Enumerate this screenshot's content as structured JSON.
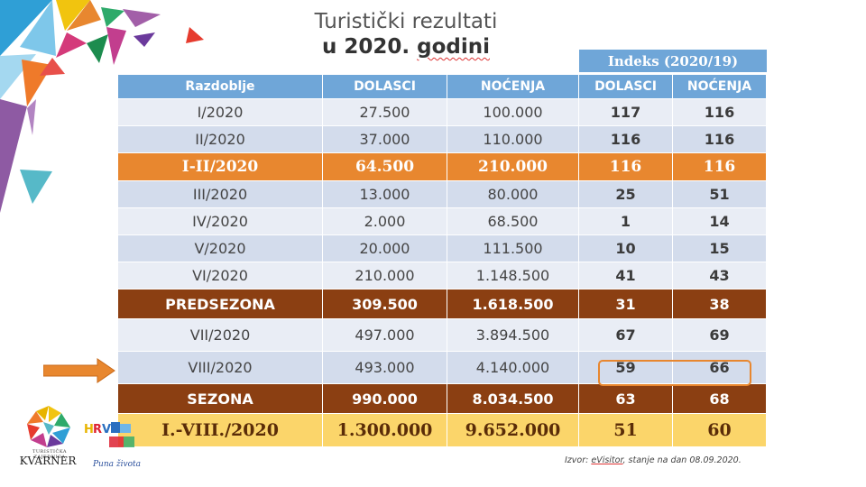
{
  "title": {
    "line1": "Turistički rezultati",
    "line2_prefix": "u 2020. ",
    "line2_word": "godini"
  },
  "index_header": "Indeks (2020/19)",
  "columns": [
    "Razdoblje",
    "DOLASCI",
    "NOĆENJA",
    "DOLASCI",
    "NOĆENJA"
  ],
  "rows": [
    {
      "period": "I/2020",
      "arrivals": "27.500",
      "nights": "100.000",
      "idx_arrivals": "117",
      "idx_nights": "116",
      "style": "alt1"
    },
    {
      "period": "II/2020",
      "arrivals": "37.000",
      "nights": "110.000",
      "idx_arrivals": "116",
      "idx_nights": "116",
      "style": "alt2"
    },
    {
      "period": "I-II/2020",
      "arrivals": "64.500",
      "nights": "210.000",
      "idx_arrivals": "116",
      "idx_nights": "116",
      "style": "orange"
    },
    {
      "period": "III/2020",
      "arrivals": "13.000",
      "nights": "80.000",
      "idx_arrivals": "25",
      "idx_nights": "51",
      "style": "alt2"
    },
    {
      "period": "IV/2020",
      "arrivals": "2.000",
      "nights": "68.500",
      "idx_arrivals": "1",
      "idx_nights": "14",
      "style": "alt1"
    },
    {
      "period": "V/2020",
      "arrivals": "20.000",
      "nights": "111.500",
      "idx_arrivals": "10",
      "idx_nights": "15",
      "style": "alt2"
    },
    {
      "period": "VI/2020",
      "arrivals": "210.000",
      "nights": "1.148.500",
      "idx_arrivals": "41",
      "idx_nights": "43",
      "style": "alt1"
    },
    {
      "period": "PREDSEZONA",
      "arrivals": "309.500",
      "nights": "1.618.500",
      "idx_arrivals": "31",
      "idx_nights": "38",
      "style": "brown"
    },
    {
      "period": "VII/2020",
      "arrivals": "497.000",
      "nights": "3.894.500",
      "idx_arrivals": "67",
      "idx_nights": "69",
      "style": "alt1"
    },
    {
      "period": "VIII/2020",
      "arrivals": "493.000",
      "nights": "4.140.000",
      "idx_arrivals": "59",
      "idx_nights": "66",
      "style": "alt2"
    },
    {
      "period": "SEZONA",
      "arrivals": "990.000",
      "nights": "8.034.500",
      "idx_arrivals": "63",
      "idx_nights": "68",
      "style": "brown"
    },
    {
      "period": "I.-VIII./2020",
      "arrivals": "1.300.000",
      "nights": "9.652.000",
      "idx_arrivals": "51",
      "idx_nights": "60",
      "style": "yellow"
    }
  ],
  "source": {
    "prefix": "Izvor: ",
    "name": "eVisitor",
    "suffix": ", stanje na dan 08.09.2020."
  },
  "logos": {
    "kvarner_small": "TURISTIČKA ZAJEDNICA",
    "kvarner_big": "KVARNER",
    "hrvatska_tagline": "Puna života"
  },
  "colors": {
    "header_blue": "#6fa6d8",
    "orange": "#e8872f",
    "brown": "#8b3f12",
    "yellow": "#fbd56a",
    "row_light": "#e9edf5",
    "row_dark": "#d3dcec"
  }
}
